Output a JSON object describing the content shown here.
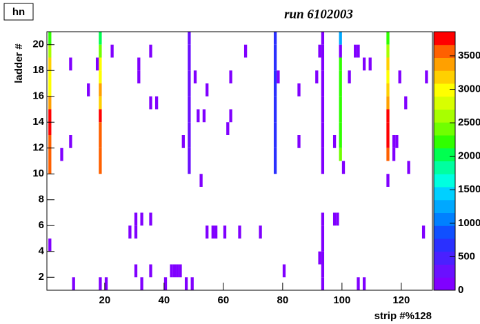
{
  "chart_data": {
    "type": "heatmap",
    "stat_box": "hn",
    "title": "run 6102003",
    "xlabel": "strip #%128",
    "ylabel": "ladder #",
    "xlim": [
      0.5,
      130.5
    ],
    "ylim": [
      1,
      21
    ],
    "zlim": [
      0,
      3860
    ],
    "xticks": [
      20,
      40,
      60,
      80,
      100,
      120
    ],
    "yticks": [
      2,
      4,
      6,
      8,
      10,
      12,
      14,
      16,
      18,
      20
    ],
    "zticks": [
      0,
      500,
      1000,
      1500,
      2000,
      2500,
      3000,
      3500
    ],
    "palette": [
      "#8000ff",
      "#6a10ff",
      "#4a20ff",
      "#2a30ff",
      "#1050ff",
      "#0080ff",
      "#00a8ff",
      "#00d0ff",
      "#00ffe0",
      "#00ffa0",
      "#00ff50",
      "#30ff00",
      "#70ff00",
      "#a8ff00",
      "#d8ff00",
      "#ffff00",
      "#ffd000",
      "#ffa000",
      "#ff6000",
      "#ff0000"
    ],
    "x": [
      1,
      1,
      1,
      1,
      1,
      1,
      1,
      1,
      1,
      1,
      1,
      1,
      18,
      18,
      18,
      18,
      18,
      18,
      18,
      18,
      18,
      18,
      18,
      18,
      48,
      48,
      48,
      48,
      48,
      48,
      48,
      48,
      48,
      48,
      48,
      77,
      77,
      77,
      77,
      77,
      77,
      77,
      77,
      77,
      77,
      77,
      93,
      93,
      93,
      93,
      93,
      93,
      93,
      93,
      93,
      93,
      93,
      93,
      93,
      93,
      93,
      93,
      93,
      99,
      99,
      99,
      99,
      99,
      99,
      99,
      99,
      99,
      99,
      115,
      115,
      115,
      115,
      115,
      115,
      115,
      115,
      115,
      115,
      115,
      22,
      35,
      67,
      92,
      104,
      105,
      8,
      17,
      31,
      31,
      107,
      109,
      50,
      62,
      78,
      91,
      102,
      119,
      128,
      54,
      85,
      14,
      35,
      37,
      121,
      51,
      53,
      62,
      61,
      8,
      46,
      85,
      97,
      117,
      118,
      5,
      117,
      100,
      122,
      52,
      30,
      32,
      35,
      97,
      98,
      28,
      30,
      54,
      56,
      57,
      60,
      65,
      72,
      127,
      92,
      30,
      35,
      42,
      43,
      44,
      45,
      80,
      9,
      20,
      32,
      40,
      47,
      49,
      105,
      107
    ],
    "y": [
      20,
      19,
      18,
      17,
      16,
      15,
      14,
      13,
      12,
      11,
      10,
      4,
      20,
      19,
      18,
      17,
      16,
      15,
      14,
      13,
      12,
      11,
      10,
      1,
      20,
      19,
      18,
      17,
      16,
      15,
      14,
      13,
      12,
      11,
      10,
      20,
      19,
      18,
      17,
      16,
      15,
      14,
      13,
      12,
      11,
      10,
      20,
      19,
      18,
      17,
      16,
      15,
      14,
      13,
      12,
      11,
      10,
      6,
      5,
      4,
      3,
      2,
      1,
      20,
      19,
      18,
      17,
      16,
      15,
      14,
      13,
      12,
      11,
      20,
      19,
      18,
      17,
      16,
      15,
      14,
      13,
      12,
      11,
      9,
      19,
      19,
      19,
      19,
      19,
      19,
      18,
      18,
      18,
      17,
      18,
      18,
      17,
      17,
      17,
      17,
      17,
      17,
      17,
      16,
      16,
      16,
      15,
      15,
      15,
      14,
      14,
      14,
      13,
      12,
      12,
      12,
      12,
      12,
      12,
      11,
      11,
      10,
      10,
      9,
      6,
      6,
      6,
      6,
      6,
      5,
      5,
      5,
      5,
      5,
      5,
      5,
      5,
      5,
      3,
      2,
      2,
      2,
      2,
      2,
      2,
      2,
      1,
      1,
      1,
      1,
      1,
      1,
      1,
      1
    ],
    "values": [
      2200,
      2600,
      3200,
      3000,
      2900,
      3400,
      3700,
      3700,
      3600,
      3500,
      3500,
      100,
      2000,
      2500,
      3000,
      2900,
      3300,
      3200,
      3700,
      3600,
      3600,
      3600,
      3600,
      100,
      200,
      200,
      200,
      200,
      200,
      200,
      200,
      200,
      200,
      200,
      200,
      600,
      600,
      600,
      600,
      700,
      700,
      700,
      600,
      600,
      600,
      600,
      100,
      100,
      100,
      100,
      100,
      100,
      100,
      100,
      100,
      100,
      100,
      100,
      100,
      100,
      100,
      100,
      100,
      1200,
      100,
      2300,
      2300,
      2300,
      2300,
      2300,
      2300,
      2300,
      2500,
      2200,
      2700,
      3200,
      2900,
      3200,
      3300,
      3700,
      3700,
      3700,
      3600,
      100,
      100,
      100,
      100,
      100,
      100,
      100,
      100,
      100,
      100,
      100,
      100,
      100,
      100,
      100,
      100,
      100,
      100,
      100,
      100,
      100,
      100,
      100,
      100,
      100,
      100,
      100,
      100,
      100,
      100,
      100,
      100,
      100,
      100,
      100,
      100,
      100,
      100,
      100,
      100,
      100,
      100,
      100,
      100,
      100,
      100,
      100,
      100,
      100,
      100,
      100,
      100,
      100,
      100,
      100,
      100,
      100,
      100,
      100,
      100,
      100,
      100,
      100,
      100,
      100,
      100,
      100,
      100,
      100,
      100,
      100
    ]
  }
}
